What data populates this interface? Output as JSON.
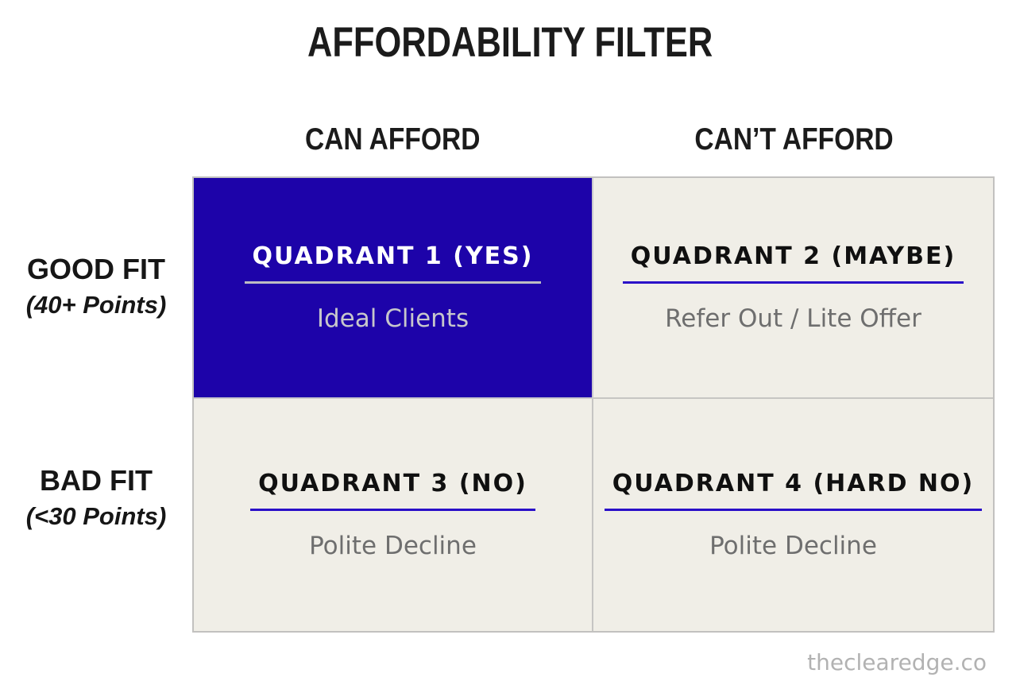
{
  "title": "AFFORDABILITY FILTER",
  "columns": [
    {
      "label": "CAN AFFORD"
    },
    {
      "label": "CAN’T AFFORD"
    }
  ],
  "rows": [
    {
      "label": "GOOD FIT",
      "sublabel": "(40+ Points)"
    },
    {
      "label": "BAD FIT",
      "sublabel": "(<30 Points)"
    }
  ],
  "quadrants": [
    {
      "title": "QUADRANT 1 (YES)",
      "subtitle": "Ideal Clients",
      "highlighted": true
    },
    {
      "title": "QUADRANT 2 (MAYBE)",
      "subtitle": "Refer Out / Lite Offer",
      "highlighted": false
    },
    {
      "title": "QUADRANT 3 (NO)",
      "subtitle": "Polite Decline",
      "highlighted": false
    },
    {
      "title": "QUADRANT 4 (HARD NO)",
      "subtitle": "Polite Decline",
      "highlighted": false
    }
  ],
  "watermark": "theclearedge.co",
  "colors": {
    "highlight_bg": "#1d03a9",
    "cell_bg": "#f0eee7",
    "underline_blue": "#2a0fc8",
    "underline_light": "#bdbdc2",
    "heading_text": "#1b1b1b",
    "quadrant_title_text": "#101010",
    "subtitle_gray": "#6e6e6e",
    "highlight_subtitle": "#c7c7cb",
    "watermark_gray": "#b2b2b2",
    "grid_border": "#c2c1bf"
  }
}
